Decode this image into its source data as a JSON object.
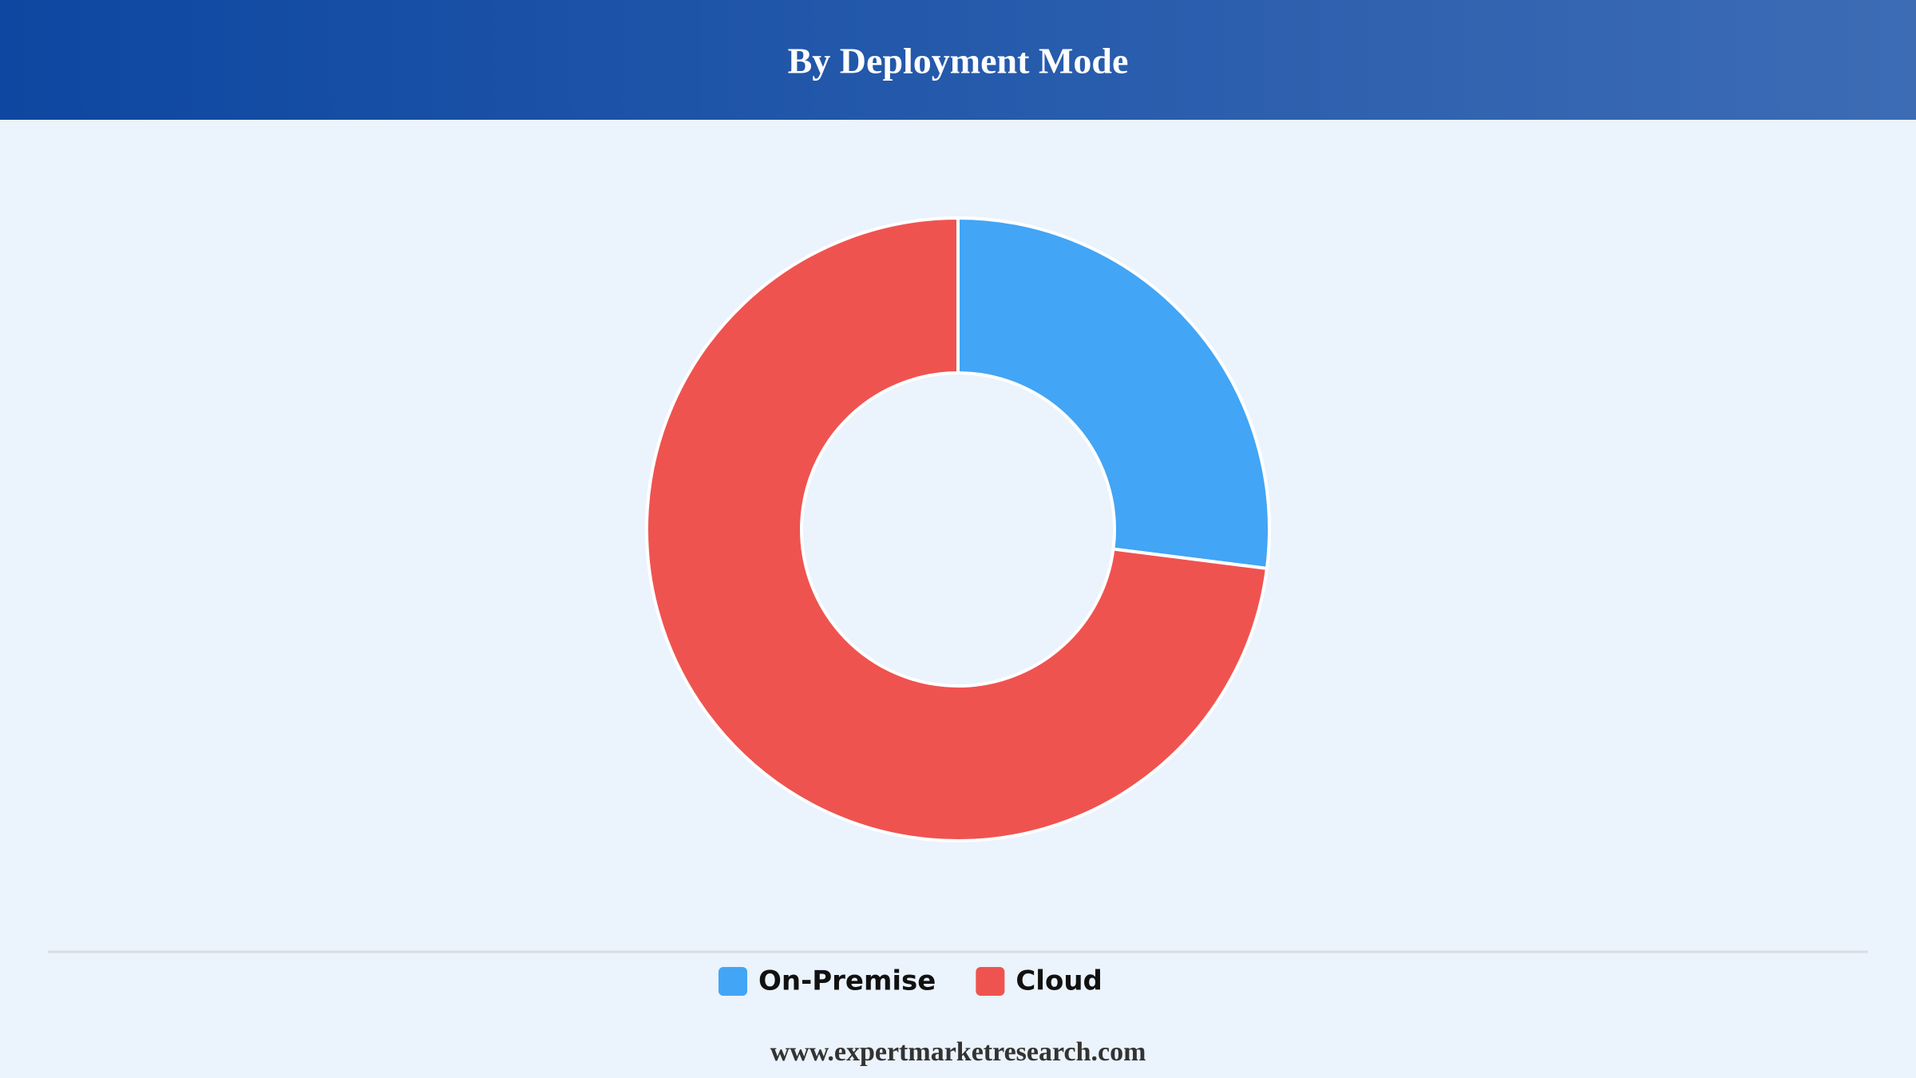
{
  "chart_data": {
    "type": "donut",
    "title": "By Deployment Mode",
    "categories": [
      "On-Premise",
      "Cloud"
    ],
    "values": [
      27,
      73
    ],
    "colors": [
      "#42a5f5",
      "#ef5350"
    ],
    "legend": "bottom"
  },
  "footer": "www.expertmarketresearch.com"
}
